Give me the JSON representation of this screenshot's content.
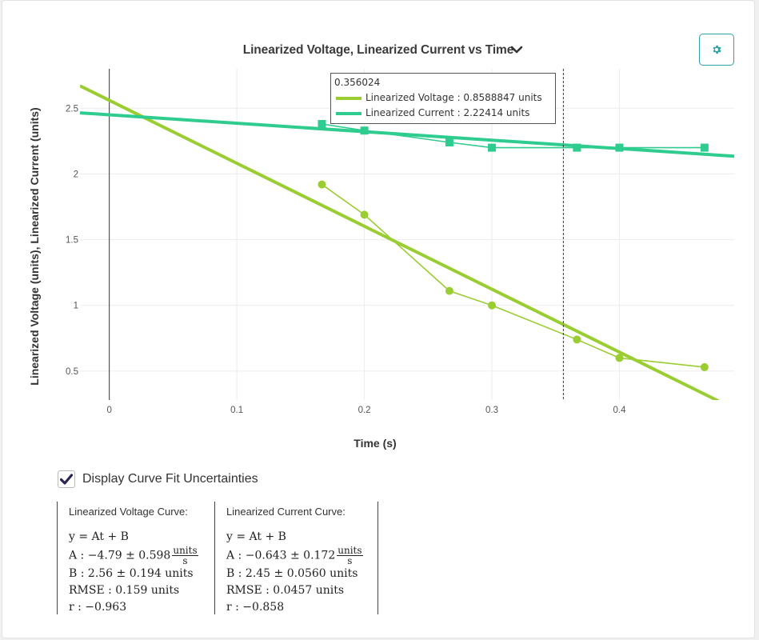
{
  "header": {
    "title": "Linearized Voltage, Linearized Current vs Time"
  },
  "tooltip": {
    "x_value": "0.356024",
    "entries": [
      {
        "label": "Linearized Voltage : 0.8588847 units",
        "color": "#9acd32"
      },
      {
        "label": "Linearized Current : 2.22414 units",
        "color": "#2ecc8f"
      }
    ]
  },
  "uncertainty": {
    "label": "Display Curve Fit Uncertainties",
    "checked": true
  },
  "fits": [
    {
      "heading": "Linearized Voltage Curve:",
      "equation": "y = At + B",
      "A": "A : −4.79 ± 0.598",
      "A_unit_num": "units",
      "A_unit_den": "s",
      "B": "B : 2.56 ± 0.194 units",
      "RMSE": "RMSE : 0.159 units",
      "r": "r : −0.963"
    },
    {
      "heading": "Linearized Current Curve:",
      "equation": "y = At + B",
      "A": "A : −0.643 ± 0.172",
      "A_unit_num": "units",
      "A_unit_den": "s",
      "B": "B : 2.45 ± 0.0560 units",
      "RMSE": "RMSE : 0.0457 units",
      "r": "r : −0.858"
    }
  ],
  "chart_data": {
    "type": "scatter",
    "title": "Linearized Voltage, Linearized Current vs Time",
    "xlabel": "Time (s)",
    "ylabel": "Linearized Voltage (units), Linearized Current (units)",
    "xlim": [
      -0.023,
      0.49
    ],
    "ylim": [
      0.28,
      2.8
    ],
    "x_ticks": [
      0,
      0.1,
      0.2,
      0.3,
      0.4
    ],
    "x_tick_labels": [
      "0",
      "0.1",
      "0.2",
      "0.3",
      "0.4"
    ],
    "y_ticks": [
      0.5,
      1,
      1.5,
      2,
      2.5
    ],
    "y_tick_labels": [
      "0.5",
      "1",
      "1.5",
      "2",
      "2.5"
    ],
    "grid": true,
    "hover_x": 0.356024,
    "series": [
      {
        "name": "Linearized Voltage",
        "color": "#9acd32",
        "marker": "circle",
        "x": [
          0.1667,
          0.2,
          0.2667,
          0.3,
          0.3667,
          0.4,
          0.4667
        ],
        "y": [
          1.92,
          1.69,
          1.11,
          1.0,
          0.74,
          0.6,
          0.53
        ],
        "fit": {
          "A": -4.79,
          "B": 2.56
        }
      },
      {
        "name": "Linearized Current",
        "color": "#2ecc8f",
        "marker": "square",
        "x": [
          0.1667,
          0.2,
          0.2667,
          0.3,
          0.3667,
          0.4,
          0.4667
        ],
        "y": [
          2.38,
          2.33,
          2.24,
          2.2,
          2.2,
          2.2,
          2.2
        ],
        "fit": {
          "A": -0.643,
          "B": 2.45
        }
      }
    ]
  }
}
